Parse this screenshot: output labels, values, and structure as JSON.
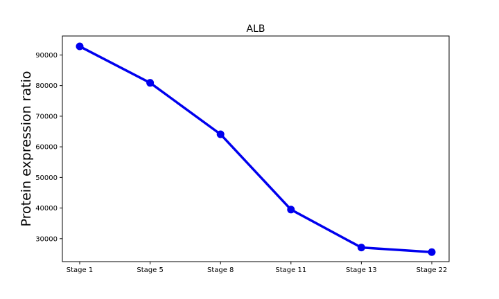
{
  "chart_data": {
    "type": "line",
    "title": "ALB",
    "xlabel": "",
    "ylabel": "Protein expression ratio",
    "categories": [
      "Stage 1",
      "Stage 5",
      "Stage 8",
      "Stage 11",
      "Stage 13",
      "Stage 22"
    ],
    "series": [
      {
        "values": [
          92800,
          80900,
          64100,
          39500,
          27100,
          25600
        ]
      }
    ],
    "ylim": [
      22500,
      96200
    ],
    "yticks": [
      "30000",
      "40000",
      "50000",
      "60000",
      "70000",
      "80000",
      "90000"
    ],
    "grid": false,
    "line_color": "#0000ee"
  }
}
